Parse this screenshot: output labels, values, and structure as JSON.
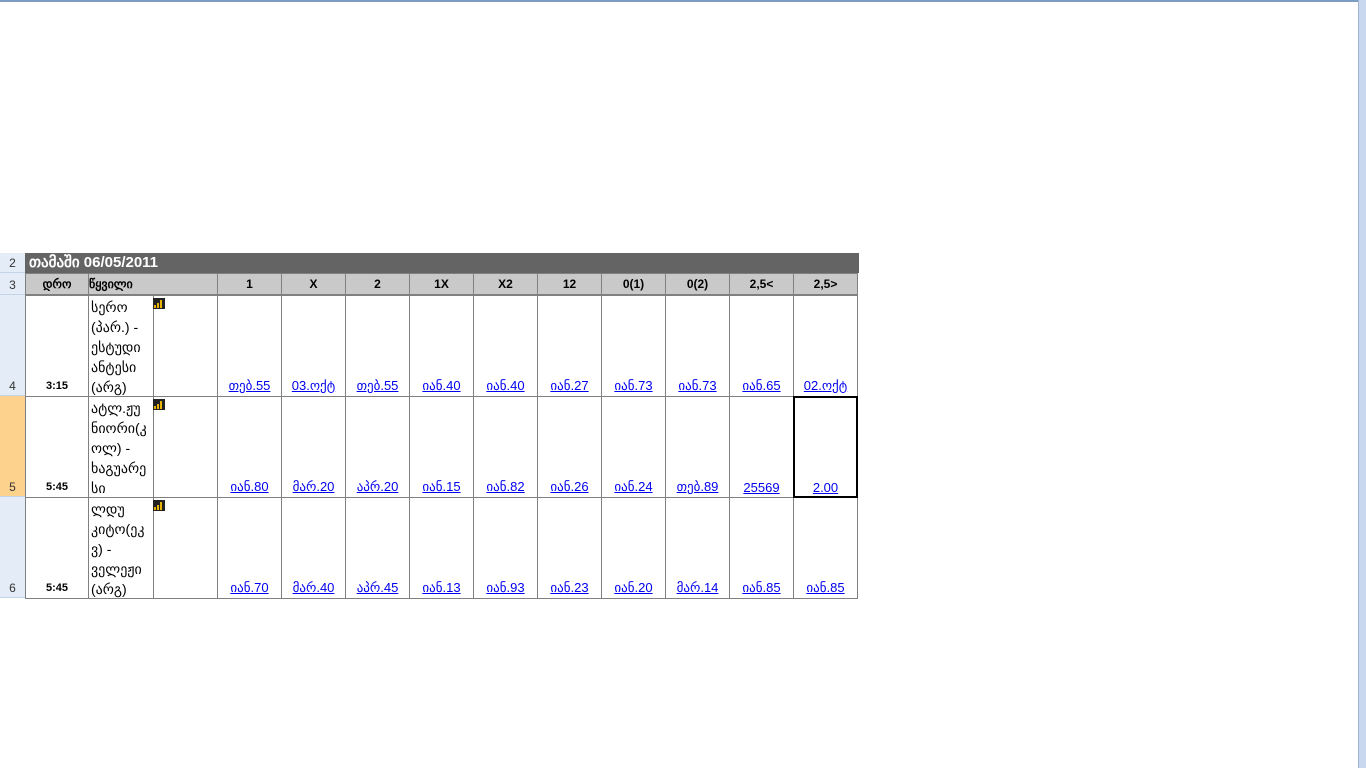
{
  "sheet": {
    "title": "თამაში 06/05/2011",
    "row_numbers": [
      "2",
      "3",
      "4",
      "5",
      "6"
    ],
    "headers": [
      "დრო",
      "წყვილი",
      "1",
      "X",
      "2",
      "1X",
      "X2",
      "12",
      "0(1)",
      "0(2)",
      "2,5<",
      "2,5>"
    ],
    "rows": [
      {
        "time": "3:15",
        "match": "სერო\n(პარ.) -\nესტუდი\nანტესი\n(არგ)",
        "odds": [
          "თებ.55",
          "03.ოქტ",
          "თებ.55",
          "იან.40",
          "იან.40",
          "იან.27",
          "იან.73",
          "იან.73",
          "იან.65",
          "02.ოქტ"
        ]
      },
      {
        "time": "5:45",
        "match": "ატლ.ჟუ\nნიორი(კ\nოლ) -\nხაგუარე\nსი",
        "odds": [
          "იან.80",
          "მარ.20",
          "აპრ.20",
          "იან.15",
          "იან.82",
          "იან.26",
          "იან.24",
          "თებ.89",
          "25569",
          "2.00"
        ]
      },
      {
        "time": "5:45",
        "match": "ლდუ\nკიტო(ეკ\nვ) -\nველეჟი\n(არგ)",
        "odds": [
          "იან.70",
          "მარ.40",
          "აპრ.45",
          "იან.13",
          "იან.93",
          "იან.23",
          "იან.20",
          "მარ.14",
          "იან.85",
          "იან.85"
        ]
      }
    ],
    "selected_row": "5",
    "icon": "stats-bar-icon"
  }
}
